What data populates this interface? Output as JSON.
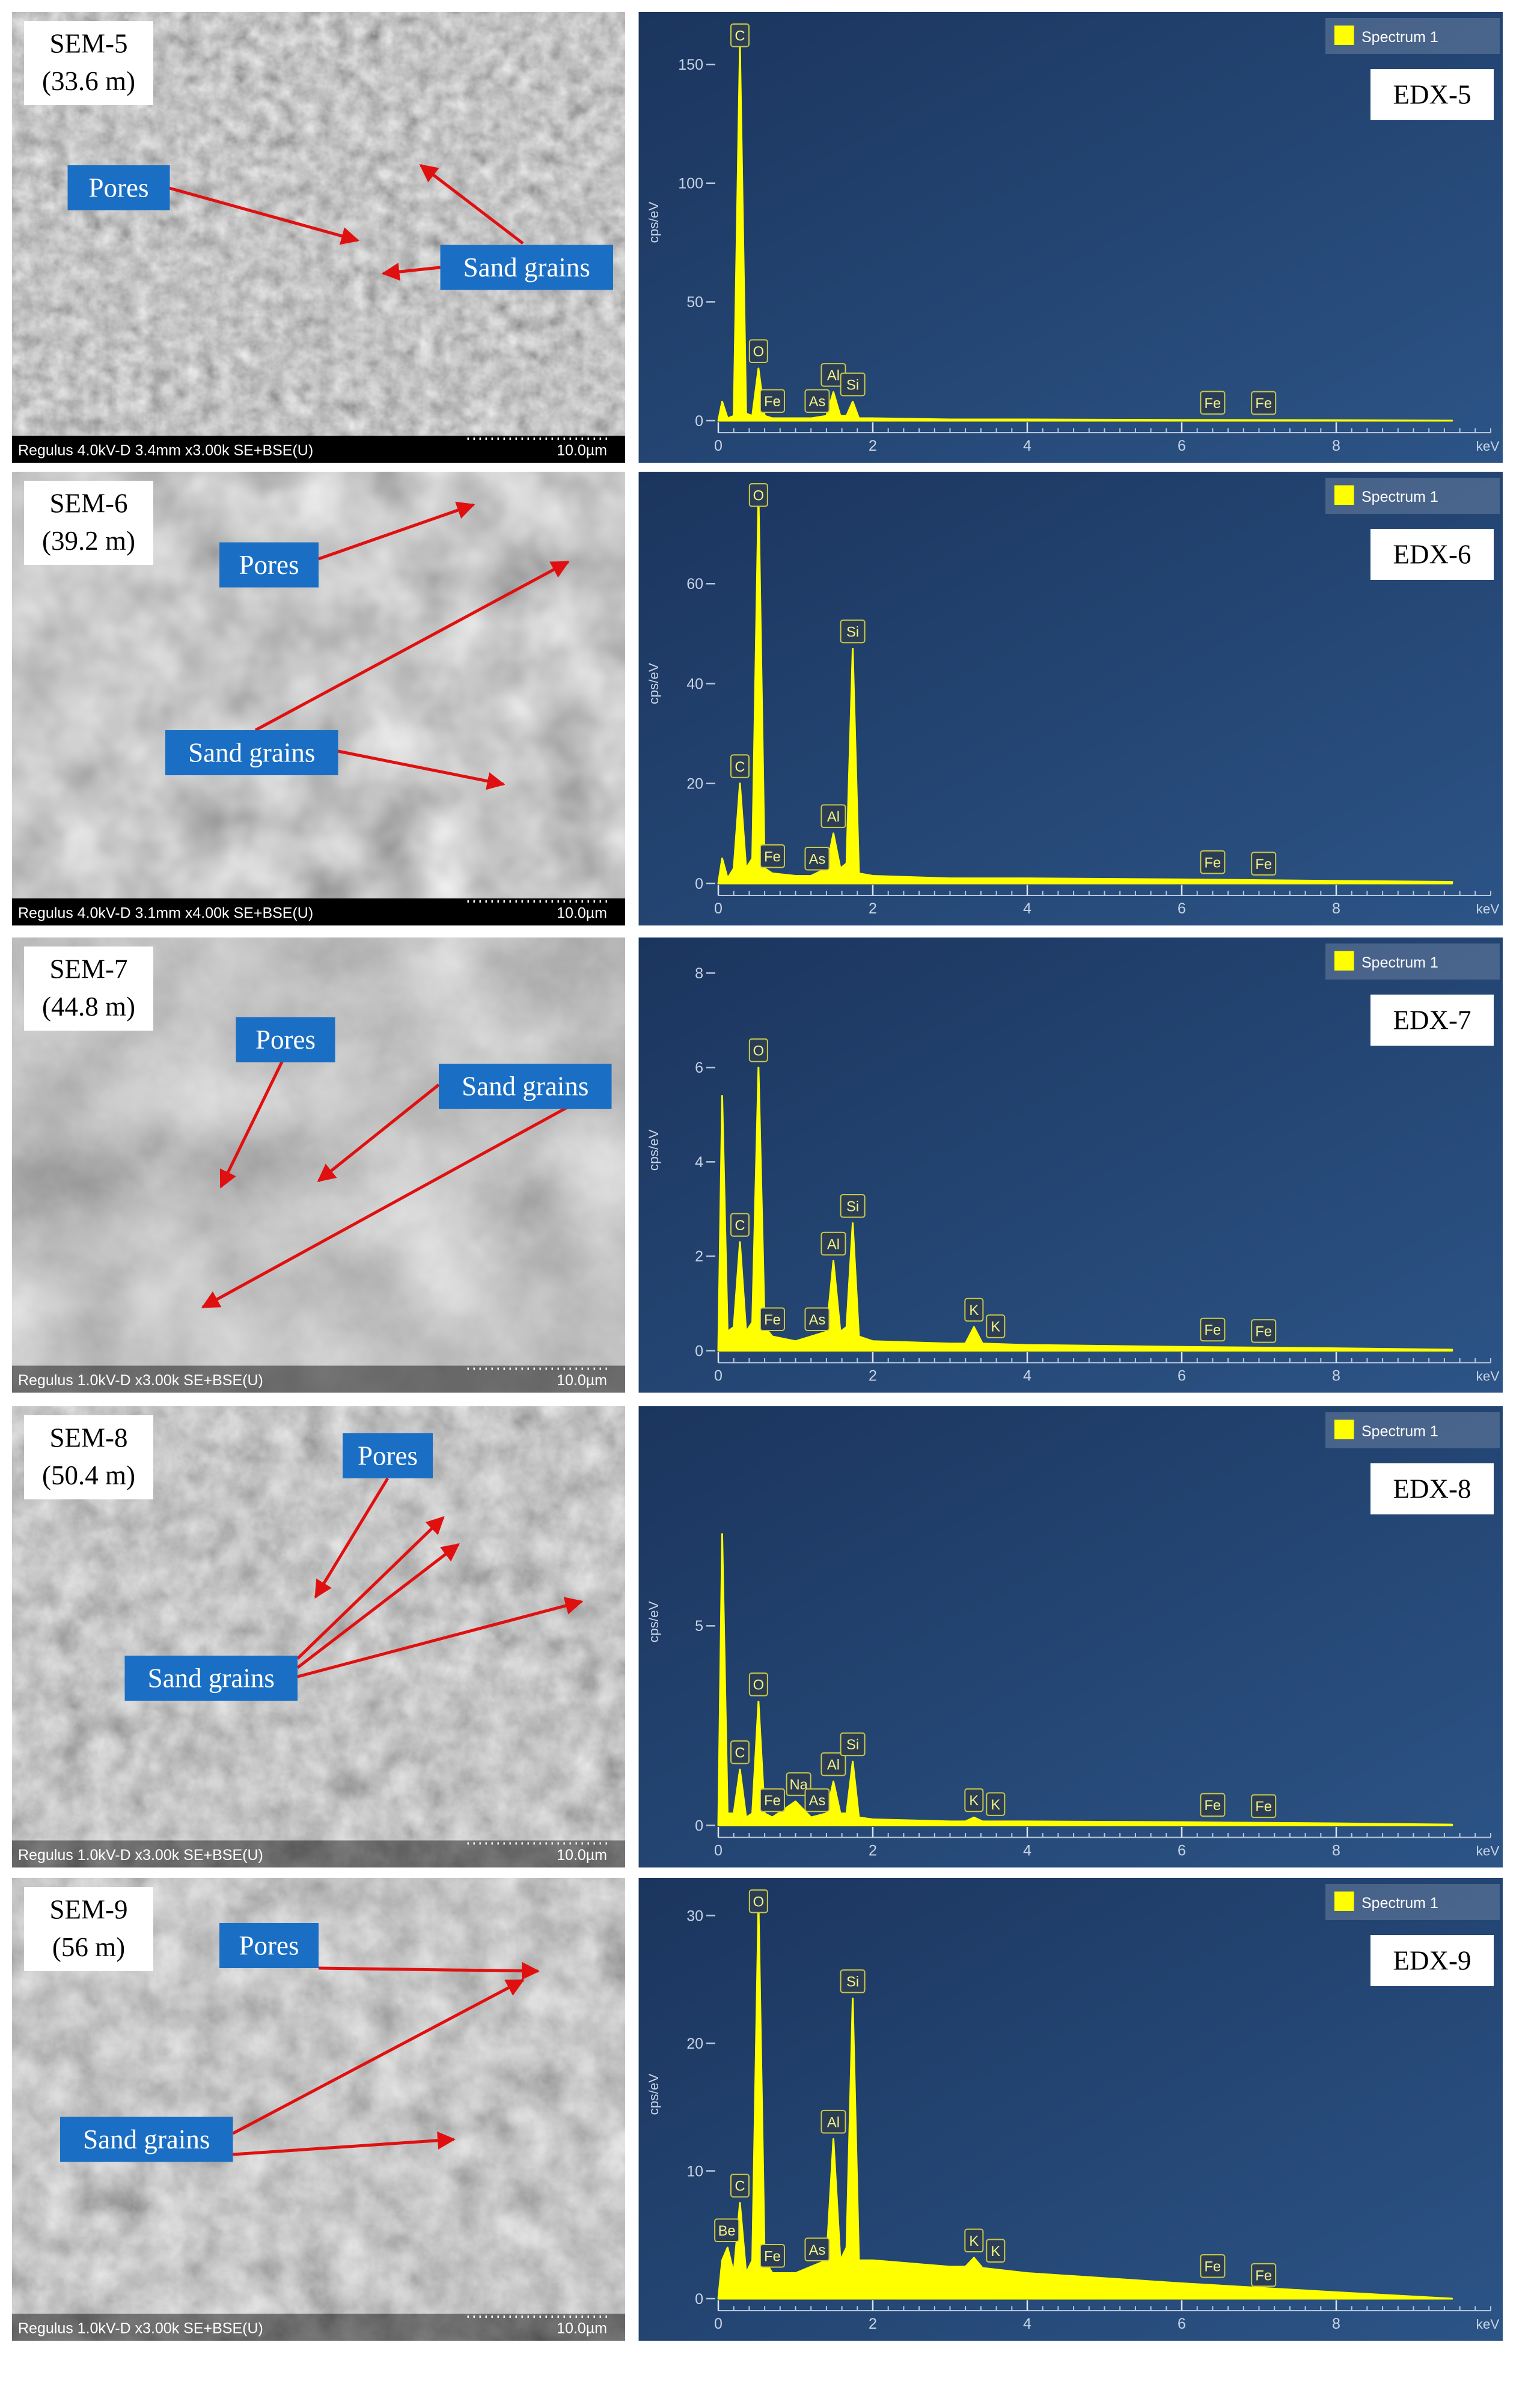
{
  "sem_panels": [
    {
      "label": "SEM-5",
      "depth": "(33.6 m)",
      "pores": "Pores",
      "grains": "Sand grains",
      "info": "Regulus 4.0kV-D 3.4mm x3.00k SE+BSE(U)",
      "scale_bar": "10.0µm"
    },
    {
      "label": "SEM-6",
      "depth": "(39.2 m)",
      "pores": "Pores",
      "grains": "Sand grains",
      "info": "Regulus 4.0kV-D 3.1mm x4.00k SE+BSE(U)",
      "scale_bar": "10.0µm"
    },
    {
      "label": "SEM-7",
      "depth": "(44.8 m)",
      "pores": "Pores",
      "grains": "Sand grains",
      "info": "Regulus 1.0kV-D x3.00k SE+BSE(U)",
      "scale_bar": "10.0µm"
    },
    {
      "label": "SEM-8",
      "depth": "(50.4 m)",
      "pores": "Pores",
      "grains": "Sand grains",
      "info": "Regulus 1.0kV-D x3.00k SE+BSE(U)",
      "scale_bar": "10.0µm"
    },
    {
      "label": "SEM-9",
      "depth": "(56 m)",
      "pores": "Pores",
      "grains": "Sand grains",
      "info": "Regulus 1.0kV-D x3.00k SE+BSE(U)",
      "scale_bar": "10.0µm"
    }
  ],
  "chart_data": [
    {
      "type": "area",
      "title": "EDX-5",
      "y_label": "cps/eV",
      "x_label": "keV",
      "xlim": [
        0,
        10
      ],
      "xticks": [
        0,
        2,
        4,
        6,
        8
      ],
      "ylim": [
        0,
        167
      ],
      "yticks": [
        0,
        50,
        100,
        150
      ],
      "x": [
        0,
        0.05,
        0.12,
        0.2,
        0.28,
        0.36,
        0.44,
        0.52,
        0.6,
        0.7,
        1.0,
        1.2,
        1.4,
        1.49,
        1.58,
        1.66,
        1.74,
        1.82,
        2.0,
        3.0,
        3.2,
        3.31,
        3.42,
        4,
        6,
        8,
        9.5
      ],
      "series": [
        {
          "name": "Spectrum 1",
          "color": "#ffff00",
          "values": [
            0,
            8,
            1,
            2,
            158,
            3,
            2,
            22,
            2,
            1,
            1,
            1,
            2,
            12,
            2,
            2,
            8,
            1,
            1,
            0.5,
            0.5,
            0.5,
            0.5,
            0.5,
            0.3,
            0.2,
            0
          ]
        }
      ],
      "peak_labels": [
        {
          "label": "C",
          "x": 0.28
        },
        {
          "label": "O",
          "x": 0.52
        },
        {
          "label": "Fe",
          "x": 0.7
        },
        {
          "label": "As",
          "x": 1.28
        },
        {
          "label": "Al",
          "x": 1.49
        },
        {
          "label": "Si",
          "x": 1.74
        },
        {
          "label": "Fe",
          "x": 6.4
        },
        {
          "label": "Fe",
          "x": 7.06
        }
      ]
    },
    {
      "type": "area",
      "title": "EDX-6",
      "y_label": "cps/eV",
      "x_label": "keV",
      "xlim": [
        0,
        10
      ],
      "xticks": [
        0,
        2,
        4,
        6,
        8
      ],
      "ylim": [
        0,
        80
      ],
      "yticks": [
        0,
        20,
        40,
        60
      ],
      "x": [
        0,
        0.05,
        0.12,
        0.2,
        0.28,
        0.36,
        0.44,
        0.52,
        0.6,
        0.7,
        1.0,
        1.2,
        1.4,
        1.49,
        1.58,
        1.66,
        1.74,
        1.82,
        2.0,
        3.0,
        3.2,
        3.31,
        3.42,
        4,
        6,
        8,
        9.5
      ],
      "series": [
        {
          "name": "Spectrum 1",
          "color": "#ffff00",
          "values": [
            0,
            5,
            1,
            3,
            20,
            3,
            5,
            78,
            3,
            2,
            1.5,
            1.5,
            3,
            10,
            3,
            4,
            47,
            2,
            1.5,
            1,
            1,
            1,
            1,
            1,
            0.8,
            0.5,
            0.3
          ]
        }
      ],
      "peak_labels": [
        {
          "label": "C",
          "x": 0.28
        },
        {
          "label": "O",
          "x": 0.52
        },
        {
          "label": "Fe",
          "x": 0.7
        },
        {
          "label": "As",
          "x": 1.28
        },
        {
          "label": "Al",
          "x": 1.49
        },
        {
          "label": "Si",
          "x": 1.74
        },
        {
          "label": "Fe",
          "x": 6.4
        },
        {
          "label": "Fe",
          "x": 7.06
        }
      ]
    },
    {
      "type": "area",
      "title": "EDX-7",
      "y_label": "cps/eV",
      "x_label": "keV",
      "xlim": [
        0,
        10
      ],
      "xticks": [
        0,
        2,
        4,
        6,
        8
      ],
      "ylim": [
        0,
        8.5
      ],
      "yticks": [
        0,
        2,
        4,
        6,
        8
      ],
      "x": [
        0,
        0.05,
        0.12,
        0.2,
        0.28,
        0.36,
        0.44,
        0.52,
        0.6,
        0.7,
        1.0,
        1.2,
        1.4,
        1.49,
        1.58,
        1.66,
        1.74,
        1.82,
        2.0,
        3.0,
        3.2,
        3.31,
        3.42,
        4,
        6,
        8,
        9.5
      ],
      "series": [
        {
          "name": "Spectrum 1",
          "color": "#ffff00",
          "values": [
            0,
            5.4,
            0.4,
            0.5,
            2.3,
            0.4,
            0.6,
            6.0,
            0.5,
            0.3,
            0.2,
            0.3,
            0.4,
            1.9,
            0.4,
            0.5,
            2.7,
            0.3,
            0.2,
            0.15,
            0.15,
            0.5,
            0.15,
            0.12,
            0.08,
            0.05,
            0.02
          ]
        }
      ],
      "peak_labels": [
        {
          "label": "C",
          "x": 0.28
        },
        {
          "label": "O",
          "x": 0.52
        },
        {
          "label": "Fe",
          "x": 0.7
        },
        {
          "label": "As",
          "x": 1.28
        },
        {
          "label": "Al",
          "x": 1.49
        },
        {
          "label": "Si",
          "x": 1.74
        },
        {
          "label": "K",
          "x": 3.31
        },
        {
          "label": "K",
          "x": 3.59
        },
        {
          "label": "Fe",
          "x": 6.4
        },
        {
          "label": "Fe",
          "x": 7.06
        }
      ]
    },
    {
      "type": "area",
      "title": "EDX-8",
      "y_label": "cps/eV",
      "x_label": "keV",
      "xlim": [
        0,
        10
      ],
      "xticks": [
        0,
        2,
        4,
        6,
        8
      ],
      "ylim": [
        0,
        10.2
      ],
      "yticks": [
        0,
        5
      ],
      "x": [
        0,
        0.05,
        0.12,
        0.2,
        0.28,
        0.36,
        0.44,
        0.52,
        0.6,
        0.7,
        1.0,
        1.2,
        1.4,
        1.49,
        1.58,
        1.66,
        1.74,
        1.82,
        2.0,
        3.0,
        3.2,
        3.31,
        3.42,
        4,
        6,
        8,
        9.5
      ],
      "series": [
        {
          "name": "Spectrum 1",
          "color": "#ffff00",
          "values": [
            0,
            7.3,
            0.3,
            0.3,
            1.4,
            0.2,
            0.3,
            3.1,
            0.3,
            0.2,
            0.6,
            0.2,
            0.3,
            1.1,
            0.3,
            0.3,
            1.6,
            0.2,
            0.15,
            0.1,
            0.1,
            0.2,
            0.1,
            0.1,
            0.08,
            0.05,
            0.02
          ]
        }
      ],
      "peak_labels": [
        {
          "label": "C",
          "x": 0.28
        },
        {
          "label": "O",
          "x": 0.52
        },
        {
          "label": "Fe",
          "x": 0.7
        },
        {
          "label": "Na",
          "x": 1.04
        },
        {
          "label": "As",
          "x": 1.28
        },
        {
          "label": "Al",
          "x": 1.49
        },
        {
          "label": "Si",
          "x": 1.74
        },
        {
          "label": "K",
          "x": 3.31
        },
        {
          "label": "K",
          "x": 3.59
        },
        {
          "label": "Fe",
          "x": 6.4
        },
        {
          "label": "Fe",
          "x": 7.06
        }
      ]
    },
    {
      "type": "area",
      "title": "EDX-9",
      "y_label": "cps/eV",
      "x_label": "keV",
      "xlim": [
        0,
        10
      ],
      "xticks": [
        0,
        2,
        4,
        6,
        8
      ],
      "ylim": [
        0,
        32
      ],
      "yticks": [
        0,
        10,
        20,
        30
      ],
      "x": [
        0,
        0.05,
        0.12,
        0.2,
        0.28,
        0.36,
        0.44,
        0.52,
        0.6,
        0.7,
        1.0,
        1.2,
        1.4,
        1.49,
        1.58,
        1.66,
        1.74,
        1.82,
        2.0,
        3.0,
        3.2,
        3.31,
        3.42,
        4,
        6,
        8,
        9.5
      ],
      "series": [
        {
          "name": "Spectrum 1",
          "color": "#ffff00",
          "values": [
            0,
            3,
            4,
            2,
            7.5,
            2,
            3,
            31,
            3,
            2,
            2,
            2.5,
            3,
            12.5,
            3,
            4,
            23.5,
            3,
            3,
            2.5,
            2.5,
            3.2,
            2.4,
            2,
            1.2,
            0.5,
            0
          ]
        }
      ],
      "peak_labels": [
        {
          "label": "Be",
          "x": 0.11
        },
        {
          "label": "C",
          "x": 0.28
        },
        {
          "label": "O",
          "x": 0.52
        },
        {
          "label": "Fe",
          "x": 0.7
        },
        {
          "label": "As",
          "x": 1.28
        },
        {
          "label": "Al",
          "x": 1.49
        },
        {
          "label": "Si",
          "x": 1.74
        },
        {
          "label": "K",
          "x": 3.31
        },
        {
          "label": "K",
          "x": 3.59
        },
        {
          "label": "Fe",
          "x": 6.4
        },
        {
          "label": "Fe",
          "x": 7.06
        }
      ]
    }
  ]
}
